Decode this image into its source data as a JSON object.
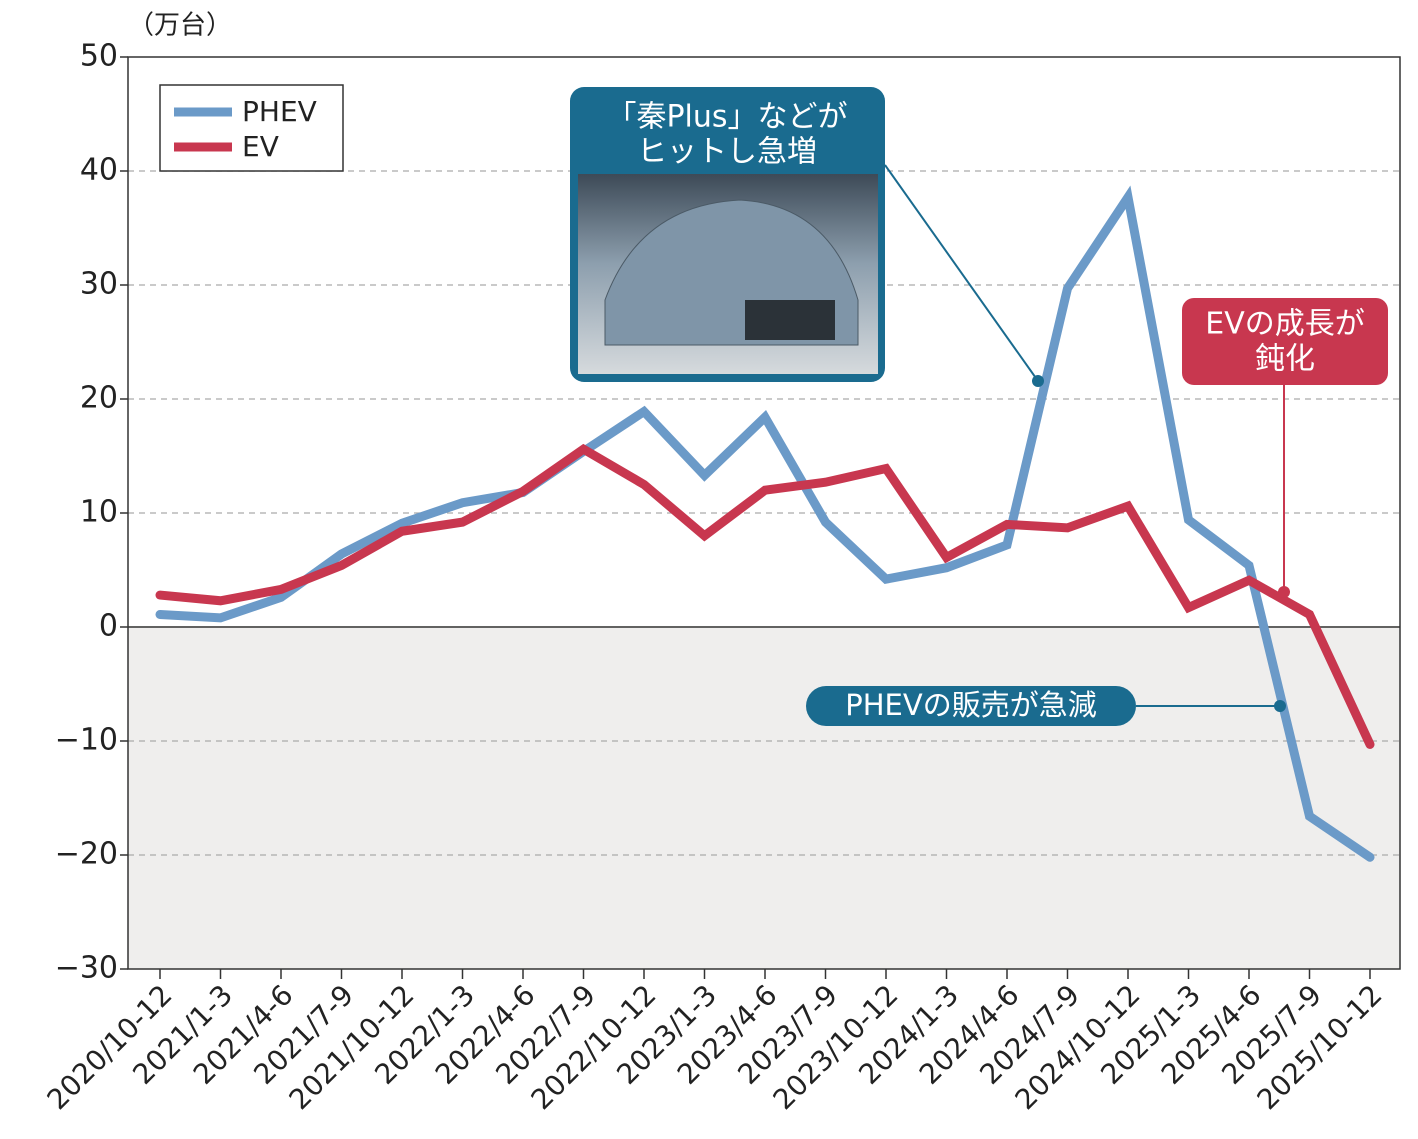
{
  "chart_data": {
    "type": "line",
    "unit_label": "（万台）",
    "categories": [
      "2020/10-12",
      "2021/1-3",
      "2021/4-6",
      "2021/7-9",
      "2021/10-12",
      "2022/1-3",
      "2022/4-6",
      "2022/7-9",
      "2022/10-12",
      "2023/1-3",
      "2023/4-6",
      "2023/7-9",
      "2023/10-12",
      "2024/1-3",
      "2024/4-6",
      "2024/7-9",
      "2024/10-12",
      "2025/1-3",
      "2025/4-6",
      "2025/7-9",
      "2025/10-12"
    ],
    "series": [
      {
        "name": "PHEV",
        "color": "#6b9ac8",
        "values": [
          1.1,
          0.8,
          2.6,
          6.4,
          9.1,
          10.9,
          11.8,
          15.4,
          18.9,
          13.3,
          18.4,
          9.2,
          4.2,
          5.2,
          7.2,
          29.7,
          37.7,
          9.4,
          5.4,
          -16.6,
          -20.2
        ]
      },
      {
        "name": "EV",
        "color": "#c8374f",
        "values": [
          2.8,
          2.3,
          3.3,
          5.4,
          8.4,
          9.2,
          11.9,
          15.6,
          12.5,
          8.0,
          12.0,
          12.7,
          13.9,
          6.1,
          9.0,
          8.7,
          10.6,
          1.7,
          4.1,
          1.1,
          -10.3
        ]
      }
    ],
    "ylim": [
      -30,
      50
    ],
    "yticks": [
      {
        "value": -30,
        "label": "−30"
      },
      {
        "value": -20,
        "label": "−20"
      },
      {
        "value": -10,
        "label": "−10"
      },
      0,
      10,
      20,
      30,
      40,
      50
    ],
    "grid": true,
    "legend": "upper-left",
    "annotations": [
      {
        "lines": [
          "「秦Plus」などが",
          "ヒットし急増"
        ],
        "color": "#1a6b8f"
      },
      {
        "lines": [
          "EVの成長が",
          "鈍化"
        ],
        "color": "#c8374f"
      },
      {
        "lines": [
          "PHEVの販売が急減"
        ],
        "color": "#1a6b8f"
      }
    ]
  }
}
